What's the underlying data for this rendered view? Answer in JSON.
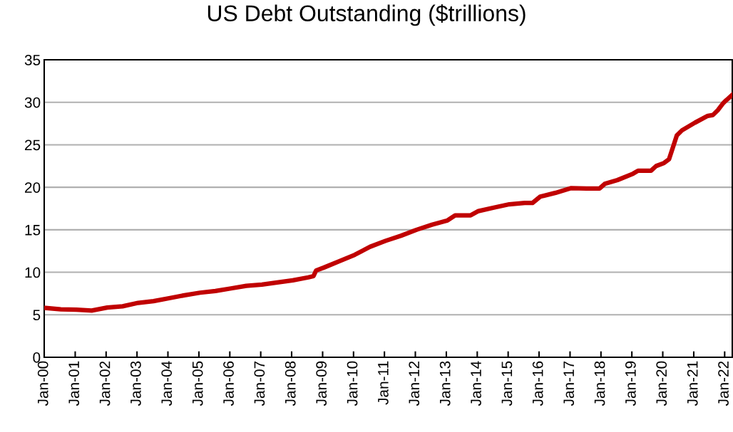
{
  "chart_data": {
    "type": "line",
    "title": "US Debt Outstanding ($trillions)",
    "x": [
      "2000-01",
      "2000-07",
      "2001-01",
      "2001-07",
      "2002-01",
      "2002-07",
      "2003-01",
      "2003-07",
      "2004-01",
      "2004-07",
      "2005-01",
      "2005-07",
      "2006-01",
      "2006-07",
      "2007-01",
      "2007-07",
      "2008-01",
      "2008-07",
      "2008-09",
      "2008-10",
      "2009-01",
      "2009-07",
      "2010-01",
      "2010-07",
      "2011-01",
      "2011-07",
      "2012-01",
      "2012-07",
      "2013-01",
      "2013-04",
      "2013-10",
      "2014-01",
      "2014-07",
      "2015-01",
      "2015-07",
      "2015-10",
      "2016-01",
      "2016-07",
      "2017-01",
      "2017-07",
      "2017-12",
      "2018-02",
      "2018-07",
      "2019-01",
      "2019-03",
      "2019-08",
      "2019-10",
      "2020-01",
      "2020-03",
      "2020-06",
      "2020-08",
      "2021-01",
      "2021-06",
      "2021-08",
      "2021-10",
      "2021-12",
      "2022-01",
      "2022-04"
    ],
    "series": [
      {
        "color": "#c00000",
        "values": [
          5.8,
          5.65,
          5.6,
          5.5,
          5.85,
          6.0,
          6.4,
          6.6,
          6.95,
          7.3,
          7.6,
          7.8,
          8.1,
          8.4,
          8.55,
          8.8,
          9.05,
          9.4,
          9.55,
          10.2,
          10.55,
          11.3,
          12.05,
          13.0,
          13.7,
          14.3,
          15.0,
          15.6,
          16.1,
          16.7,
          16.7,
          17.2,
          17.6,
          18.0,
          18.15,
          18.15,
          18.9,
          19.35,
          19.9,
          19.85,
          19.85,
          20.4,
          20.85,
          21.6,
          21.95,
          21.95,
          22.5,
          22.85,
          23.3,
          26.1,
          26.7,
          27.6,
          28.4,
          28.5,
          29.1,
          29.9,
          30.2,
          31.0
        ]
      }
    ],
    "xlim": [
      "2000-01-01",
      "2022-04-01"
    ],
    "xticks": [
      {
        "value": "2000-01-01",
        "label": "Jan-00"
      },
      {
        "value": "2001-01-01",
        "label": "Jan-01"
      },
      {
        "value": "2002-01-01",
        "label": "Jan-02"
      },
      {
        "value": "2003-01-01",
        "label": "Jan-03"
      },
      {
        "value": "2004-01-01",
        "label": "Jan-04"
      },
      {
        "value": "2005-01-01",
        "label": "Jan-05"
      },
      {
        "value": "2006-01-01",
        "label": "Jan-06"
      },
      {
        "value": "2007-01-01",
        "label": "Jan-07"
      },
      {
        "value": "2008-01-01",
        "label": "Jan-08"
      },
      {
        "value": "2009-01-01",
        "label": "Jan-09"
      },
      {
        "value": "2010-01-01",
        "label": "Jan-10"
      },
      {
        "value": "2011-01-01",
        "label": "Jan-11"
      },
      {
        "value": "2012-01-01",
        "label": "Jan-12"
      },
      {
        "value": "2013-01-01",
        "label": "Jan-13"
      },
      {
        "value": "2014-01-01",
        "label": "Jan-14"
      },
      {
        "value": "2015-01-01",
        "label": "Jan-15"
      },
      {
        "value": "2016-01-01",
        "label": "Jan-16"
      },
      {
        "value": "2017-01-01",
        "label": "Jan-17"
      },
      {
        "value": "2018-01-01",
        "label": "Jan-18"
      },
      {
        "value": "2019-01-01",
        "label": "Jan-19"
      },
      {
        "value": "2020-01-01",
        "label": "Jan-20"
      },
      {
        "value": "2021-01-01",
        "label": "Jan-21"
      },
      {
        "value": "2022-01-01",
        "label": "Jan-22"
      }
    ],
    "ylim": [
      0,
      35
    ],
    "yticks": [
      0,
      5,
      10,
      15,
      20,
      25,
      30,
      35
    ],
    "grid": "y",
    "line_style": "solid"
  }
}
